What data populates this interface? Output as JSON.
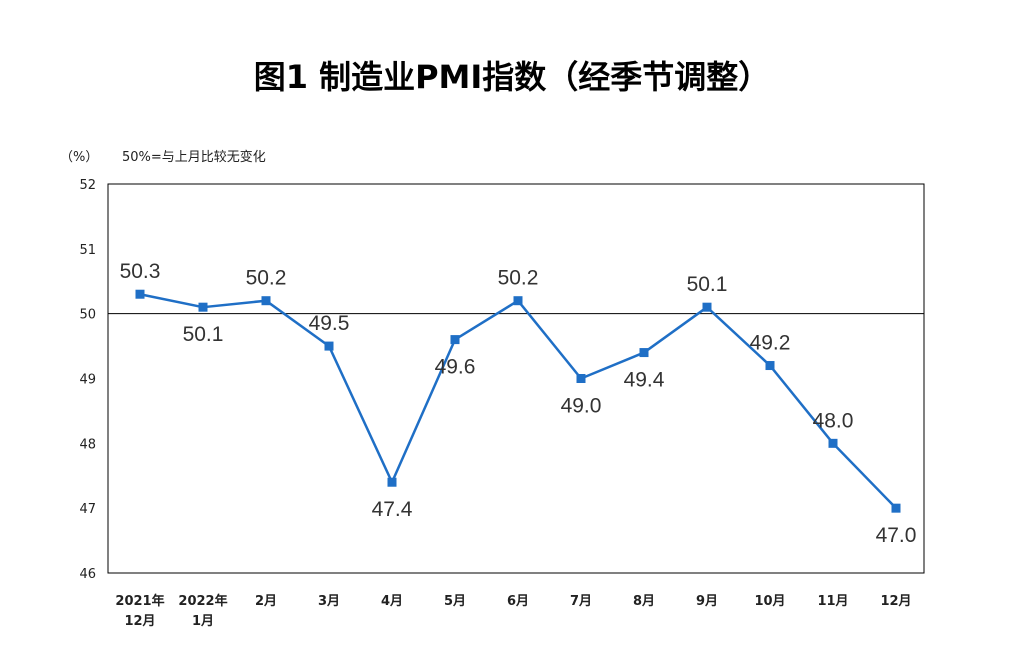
{
  "chart_data": {
    "type": "line",
    "title": "图1  制造业PMI指数（经季节调整）",
    "unit_label": "（%）",
    "reference_note": "50%=与上月比较无变化",
    "reference_value": 50,
    "categories": [
      [
        "2021年",
        "12月"
      ],
      [
        "2022年",
        "1月"
      ],
      [
        "2月"
      ],
      [
        "3月"
      ],
      [
        "4月"
      ],
      [
        "5月"
      ],
      [
        "6月"
      ],
      [
        "7月"
      ],
      [
        "8月"
      ],
      [
        "9月"
      ],
      [
        "10月"
      ],
      [
        "11月"
      ],
      [
        "12月"
      ]
    ],
    "values": [
      50.3,
      50.1,
      50.2,
      49.5,
      47.4,
      49.6,
      50.2,
      49.0,
      49.4,
      50.1,
      49.2,
      48.0,
      47.0
    ],
    "data_labels": [
      "50.3",
      "50.1",
      "50.2",
      "49.5",
      "47.4",
      "49.6",
      "50.2",
      "49.0",
      "49.4",
      "50.1",
      "49.2",
      "48.0",
      "47.0"
    ],
    "ylim": [
      46,
      52
    ],
    "yticks": [
      "46",
      "47",
      "48",
      "49",
      "50",
      "51",
      "52"
    ],
    "line_color": "#1F6FC6",
    "grid": false,
    "legend": "none"
  }
}
